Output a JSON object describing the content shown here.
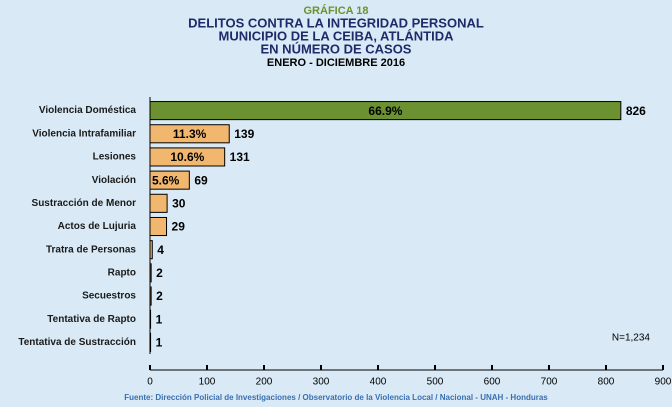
{
  "chart_data": {
    "type": "bar",
    "orientation": "horizontal",
    "kicker": "GRÁFICA 18",
    "title": [
      "DELITOS CONTRA LA INTEGRIDAD PERSONAL",
      "MUNICIPIO DE LA CEIBA, ATLÁNTIDA",
      "EN NÚMERO DE CASOS"
    ],
    "subtitle": "ENERO - DICIEMBRE 2016",
    "categories": [
      "Violencia Doméstica",
      "Violencia Intrafamiliar",
      "Lesiones",
      "Violación",
      "Sustracción de Menor",
      "Actos de Lujuria",
      "Tratra de Personas",
      "Rapto",
      "Secuestros",
      "Tentativa de Rapto",
      "Tentativa de Sustracción"
    ],
    "values": [
      826,
      139,
      131,
      69,
      30,
      29,
      4,
      2,
      2,
      1,
      1
    ],
    "percent_labels": [
      "66.9%",
      "11.3%",
      "10.6%",
      "5.6%",
      null,
      null,
      null,
      null,
      null,
      null,
      null
    ],
    "colors": [
      "#6b9131",
      "#f2b76f",
      "#f2b76f",
      "#f2b76f",
      "#f2b76f",
      "#f2b76f",
      "#f2b76f",
      "#f2b76f",
      "#f2b76f",
      "#f2b76f",
      "#f2b76f"
    ],
    "xlim": [
      0,
      900
    ],
    "xticks": [
      0,
      100,
      200,
      300,
      400,
      500,
      600,
      700,
      800,
      900
    ],
    "annotation": "N=1,234",
    "source": "Fuente: Dirección Policial de Investigaciones / Observatorio de la Violencia Local / Nacional - UNAH - Honduras"
  }
}
